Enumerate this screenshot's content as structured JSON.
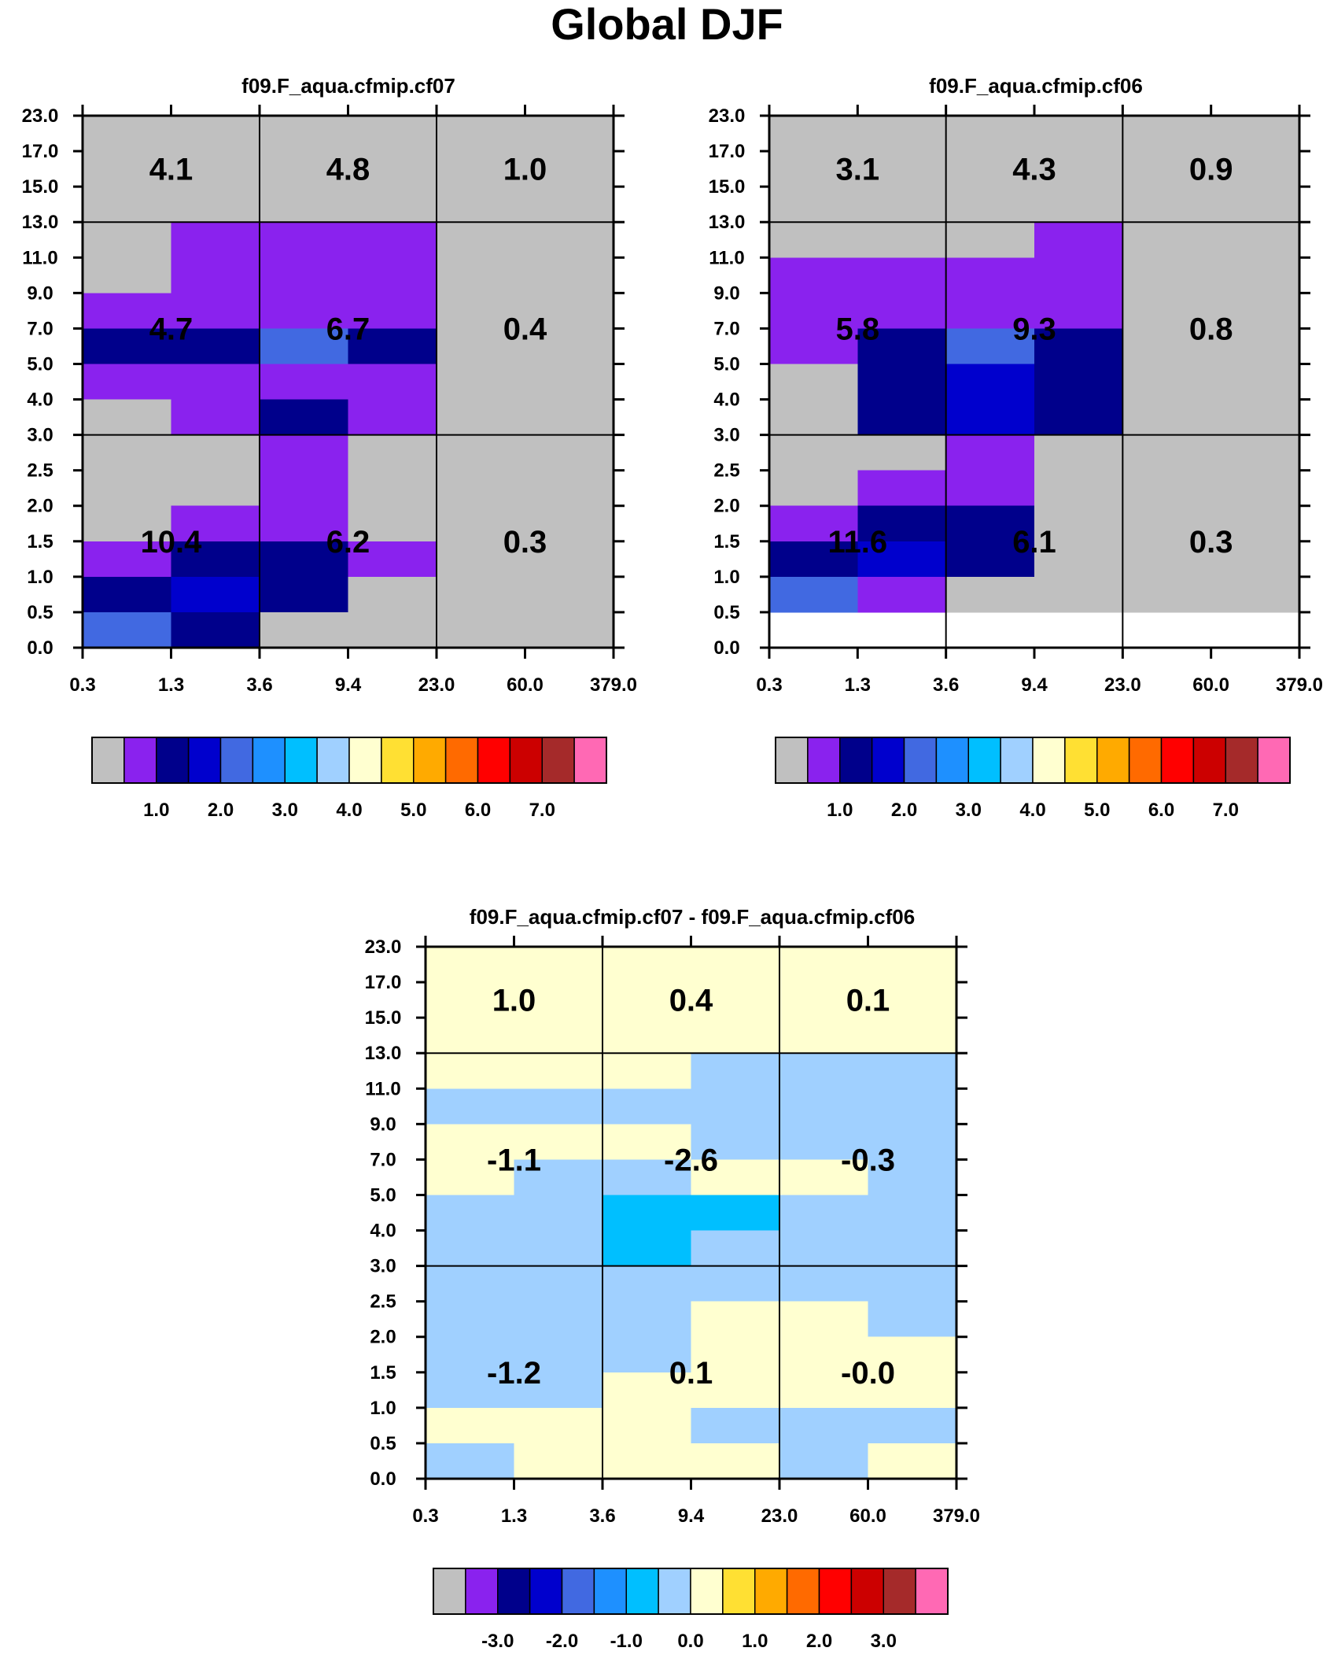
{
  "title": "Global DJF",
  "chart_data": [
    {
      "type": "heatmap",
      "id": "cf07",
      "title": "f09.F_aqua.cfmip.cf07",
      "xlabel": "",
      "ylabel": "",
      "x_ticks": [
        "0.3",
        "1.3",
        "3.6",
        "9.4",
        "23.0",
        "60.0",
        "379.0"
      ],
      "y_ticks": [
        "0.0",
        "0.5",
        "1.0",
        "1.5",
        "2.0",
        "2.5",
        "3.0",
        "4.0",
        "5.0",
        "7.0",
        "9.0",
        "11.0",
        "13.0",
        "15.0",
        "17.0",
        "23.0"
      ],
      "grid_note": "rows listed top to bottom (23.0 to 0.0); each value is a colour-class index into colorbar.colors",
      "cells": [
        [
          0,
          0,
          0,
          0,
          0,
          0
        ],
        [
          0,
          0,
          0,
          0,
          0,
          0
        ],
        [
          0,
          0,
          0,
          0,
          0,
          0
        ],
        [
          0,
          1,
          1,
          1,
          0,
          0
        ],
        [
          0,
          1,
          1,
          1,
          0,
          0
        ],
        [
          1,
          1,
          1,
          1,
          0,
          0
        ],
        [
          2,
          2,
          4,
          2,
          0,
          0
        ],
        [
          1,
          1,
          1,
          1,
          0,
          0
        ],
        [
          0,
          1,
          2,
          1,
          0,
          0
        ],
        [
          0,
          0,
          1,
          0,
          0,
          0
        ],
        [
          0,
          0,
          1,
          0,
          0,
          0
        ],
        [
          0,
          1,
          1,
          0,
          0,
          0
        ],
        [
          1,
          2,
          2,
          1,
          0,
          0
        ],
        [
          2,
          3,
          2,
          0,
          0,
          0
        ],
        [
          4,
          2,
          0,
          0,
          0,
          0
        ]
      ],
      "regions": [
        {
          "label": "4.1",
          "col": 0,
          "row": 0
        },
        {
          "label": "4.8",
          "col": 1,
          "row": 0
        },
        {
          "label": "1.0",
          "col": 2,
          "row": 0
        },
        {
          "label": "4.7",
          "col": 0,
          "row": 1
        },
        {
          "label": "6.7",
          "col": 1,
          "row": 1
        },
        {
          "label": "0.4",
          "col": 2,
          "row": 1
        },
        {
          "label": "10.4",
          "col": 0,
          "row": 2
        },
        {
          "label": "6.2",
          "col": 1,
          "row": 2
        },
        {
          "label": "0.3",
          "col": 2,
          "row": 2
        }
      ],
      "colorbar": {
        "colors": [
          "#c0c0c0",
          "#8a22ee",
          "#00008b",
          "#0000cd",
          "#4169e1",
          "#1e90ff",
          "#00bfff",
          "#a0d0ff",
          "#ffffd0",
          "#ffe033",
          "#ffaa00",
          "#ff6a00",
          "#ff0000",
          "#cc0000",
          "#a52a2a",
          "#ff69b4"
        ],
        "labels": [
          "1.0",
          "2.0",
          "3.0",
          "4.0",
          "5.0",
          "6.0",
          "7.0"
        ],
        "label_start": 1
      }
    },
    {
      "type": "heatmap",
      "id": "cf06",
      "title": "f09.F_aqua.cfmip.cf06",
      "xlabel": "",
      "ylabel": "",
      "x_ticks": [
        "0.3",
        "1.3",
        "3.6",
        "9.4",
        "23.0",
        "60.0",
        "379.0"
      ],
      "y_ticks": [
        "0.0",
        "0.5",
        "1.0",
        "1.5",
        "2.0",
        "2.5",
        "3.0",
        "4.0",
        "5.0",
        "7.0",
        "9.0",
        "11.0",
        "13.0",
        "15.0",
        "17.0",
        "23.0"
      ],
      "grid_note": "rows listed top to bottom (23.0 to 0.0); each value is a colour-class index into colorbar.colors",
      "cells": [
        [
          0,
          0,
          0,
          0,
          0,
          0
        ],
        [
          0,
          0,
          0,
          0,
          0,
          0
        ],
        [
          0,
          0,
          0,
          0,
          0,
          0
        ],
        [
          0,
          0,
          0,
          1,
          0,
          0
        ],
        [
          1,
          1,
          1,
          1,
          0,
          0
        ],
        [
          1,
          1,
          1,
          1,
          0,
          0
        ],
        [
          1,
          2,
          4,
          2,
          0,
          0
        ],
        [
          0,
          2,
          3,
          2,
          0,
          0
        ],
        [
          0,
          2,
          3,
          2,
          0,
          0
        ],
        [
          0,
          0,
          1,
          0,
          0,
          0
        ],
        [
          0,
          1,
          1,
          0,
          0,
          0
        ],
        [
          1,
          2,
          2,
          0,
          0,
          0
        ],
        [
          2,
          3,
          2,
          0,
          0,
          0
        ],
        [
          4,
          1,
          0,
          0,
          0,
          0
        ]
      ],
      "regions": [
        {
          "label": "3.1",
          "col": 0,
          "row": 0
        },
        {
          "label": "4.3",
          "col": 1,
          "row": 0
        },
        {
          "label": "0.9",
          "col": 2,
          "row": 0
        },
        {
          "label": "5.8",
          "col": 0,
          "row": 1
        },
        {
          "label": "9.3",
          "col": 1,
          "row": 1
        },
        {
          "label": "0.8",
          "col": 2,
          "row": 1
        },
        {
          "label": "11.6",
          "col": 0,
          "row": 2
        },
        {
          "label": "6.1",
          "col": 1,
          "row": 2
        },
        {
          "label": "0.3",
          "col": 2,
          "row": 2
        }
      ],
      "colorbar": {
        "colors": [
          "#c0c0c0",
          "#8a22ee",
          "#00008b",
          "#0000cd",
          "#4169e1",
          "#1e90ff",
          "#00bfff",
          "#a0d0ff",
          "#ffffd0",
          "#ffe033",
          "#ffaa00",
          "#ff6a00",
          "#ff0000",
          "#cc0000",
          "#a52a2a",
          "#ff69b4"
        ],
        "labels": [
          "1.0",
          "2.0",
          "3.0",
          "4.0",
          "5.0",
          "6.0",
          "7.0"
        ],
        "label_start": 1
      }
    },
    {
      "type": "heatmap",
      "id": "diff",
      "title": "f09.F_aqua.cfmip.cf07 - f09.F_aqua.cfmip.cf06",
      "xlabel": "",
      "ylabel": "",
      "x_ticks": [
        "0.3",
        "1.3",
        "3.6",
        "9.4",
        "23.0",
        "60.0",
        "379.0"
      ],
      "y_ticks": [
        "0.0",
        "0.5",
        "1.0",
        "1.5",
        "2.0",
        "2.5",
        "3.0",
        "4.0",
        "5.0",
        "7.0",
        "9.0",
        "11.0",
        "13.0",
        "15.0",
        "17.0",
        "23.0"
      ],
      "grid_note": "rows listed top to bottom (23.0 to 0.0); each value is a colour-class index into colorbar.colors",
      "cells": [
        [
          8,
          8,
          8,
          8,
          8,
          8
        ],
        [
          8,
          8,
          8,
          8,
          8,
          8
        ],
        [
          8,
          8,
          8,
          8,
          8,
          8
        ],
        [
          8,
          8,
          8,
          7,
          7,
          7
        ],
        [
          7,
          7,
          7,
          7,
          7,
          7
        ],
        [
          8,
          8,
          8,
          7,
          7,
          7
        ],
        [
          8,
          7,
          7,
          8,
          8,
          7
        ],
        [
          7,
          7,
          6,
          6,
          7,
          7
        ],
        [
          7,
          7,
          6,
          7,
          7,
          7
        ],
        [
          7,
          7,
          7,
          7,
          7,
          7
        ],
        [
          7,
          7,
          7,
          8,
          8,
          7
        ],
        [
          7,
          7,
          7,
          8,
          8,
          8
        ],
        [
          7,
          7,
          8,
          8,
          8,
          8
        ],
        [
          8,
          8,
          8,
          7,
          7,
          7
        ],
        [
          7,
          8,
          8,
          8,
          7,
          8
        ]
      ],
      "regions": [
        {
          "label": "1.0",
          "col": 0,
          "row": 0
        },
        {
          "label": "0.4",
          "col": 1,
          "row": 0
        },
        {
          "label": "0.1",
          "col": 2,
          "row": 0
        },
        {
          "label": "-1.1",
          "col": 0,
          "row": 1
        },
        {
          "label": "-2.6",
          "col": 1,
          "row": 1
        },
        {
          "label": "-0.3",
          "col": 2,
          "row": 1
        },
        {
          "label": "-1.2",
          "col": 0,
          "row": 2
        },
        {
          "label": "0.1",
          "col": 1,
          "row": 2
        },
        {
          "label": "-0.0",
          "col": 2,
          "row": 2
        }
      ],
      "colorbar": {
        "colors": [
          "#c0c0c0",
          "#8a22ee",
          "#00008b",
          "#0000cd",
          "#4169e1",
          "#1e90ff",
          "#00bfff",
          "#a0d0ff",
          "#ffffd0",
          "#ffe033",
          "#ffaa00",
          "#ff6a00",
          "#ff0000",
          "#cc0000",
          "#a52a2a",
          "#ff69b4"
        ],
        "labels": [
          "-3.0",
          "-2.0",
          "-1.0",
          "0.0",
          "1.0",
          "2.0",
          "3.0"
        ],
        "label_start": 1
      }
    }
  ]
}
